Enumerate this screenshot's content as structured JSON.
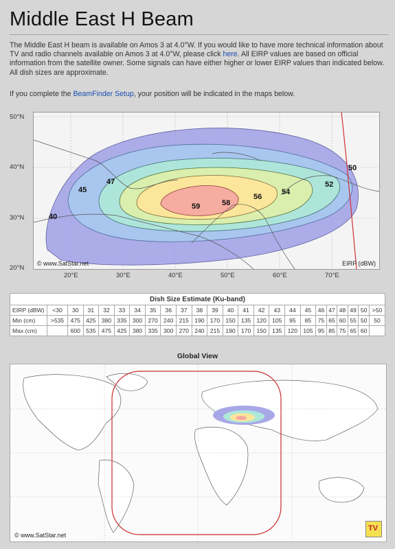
{
  "page": {
    "title": "Middle East H Beam",
    "intro_part1": "The Middle East H beam is available on Amos 3 at 4.0°W. If you would like to have more technical information about TV and radio channels available on Amos 3 at 4.0°W, please click ",
    "intro_link": "here",
    "intro_part2": ". All EIRP values are based on official information from the satellite owner. Some signals can have either higher or lower EIRP values than indicated below. All dish sizes are approximate.",
    "setup_part1": "If you complete the ",
    "setup_link": "BeamFinder Setup",
    "setup_part2": ", your position will be indicated in the maps below."
  },
  "beam_map": {
    "lat_labels": [
      "50°N",
      "40°N",
      "30°N",
      "20°N"
    ],
    "lon_labels": [
      "20°E",
      "30°E",
      "40°E",
      "50°E",
      "60°E",
      "70°E"
    ],
    "contour_labels": [
      "59",
      "58",
      "56",
      "54",
      "52",
      "50",
      "47",
      "45",
      "40"
    ],
    "credit": "© www.SatStar.net",
    "unit_label": "EIRP (dBW)",
    "colors": {
      "outer": "#9f9fe6",
      "mid1": "#a9c9f0",
      "mid2": "#aee8d8",
      "mid3": "#dff0a8",
      "mid4": "#fde59a",
      "core": "#f6a9a0",
      "coverage_line": "#d03030"
    }
  },
  "dish_table": {
    "caption": "Dish Size Estimate (Ku-band)",
    "eirp_label": "EIRP (dBW)",
    "eirp": [
      "<30",
      "30",
      "31",
      "32",
      "33",
      "34",
      "35",
      "36",
      "37",
      "38",
      "39",
      "40",
      "41",
      "42",
      "43",
      "44",
      "45",
      "46",
      "47",
      "48",
      "49",
      "50",
      ">50"
    ],
    "min_label": "Min (cm)",
    "min": [
      ">535",
      "475",
      "425",
      "380",
      "335",
      "300",
      "270",
      "240",
      "215",
      "190",
      "170",
      "150",
      "135",
      "120",
      "105",
      "95",
      "85",
      "75",
      "65",
      "60",
      "55",
      "50",
      "50"
    ],
    "max_label": "Max (cm)",
    "max": [
      "",
      "600",
      "535",
      "475",
      "425",
      "380",
      "335",
      "300",
      "270",
      "240",
      "215",
      "190",
      "170",
      "150",
      "135",
      "120",
      "105",
      "95",
      "85",
      "75",
      "65",
      "60",
      ""
    ]
  },
  "global_view": {
    "title": "Global View",
    "credit": "© www.SatStar.net",
    "logo_text": "TV",
    "colors": {
      "coverage_ring": "#cc2a2a",
      "land": "#ffffff",
      "sea": "#f6f6f6"
    }
  }
}
